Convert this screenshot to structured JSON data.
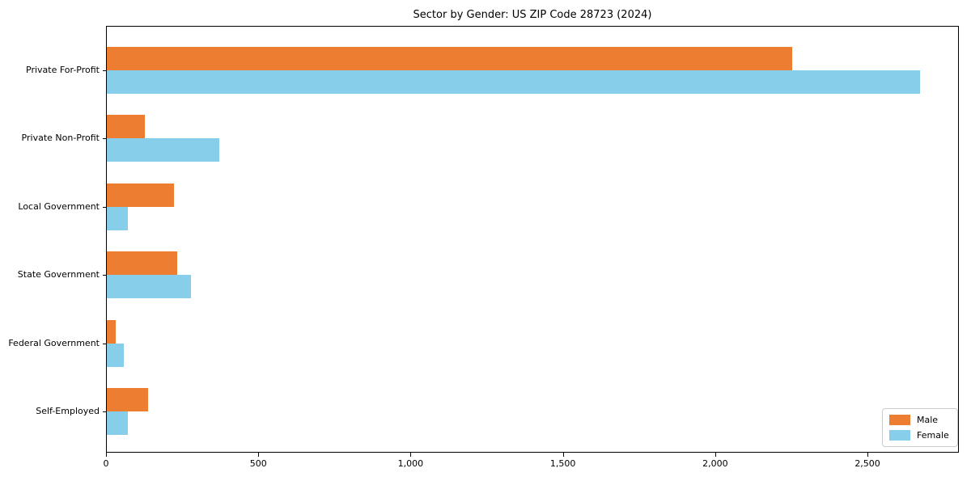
{
  "chart_data": {
    "type": "bar",
    "orientation": "horizontal",
    "title": "Sector by Gender: US ZIP Code 28723 (2024)",
    "categories": [
      "Private For-Profit",
      "Private Non-Profit",
      "Local Government",
      "State Government",
      "Federal Government",
      "Self-Employed"
    ],
    "series": [
      {
        "name": "Male",
        "color": "#ED7D31",
        "values": [
          2250,
          125,
          220,
          230,
          30,
          135
        ]
      },
      {
        "name": "Female",
        "color": "#87CEEB",
        "values": [
          2670,
          370,
          70,
          275,
          55,
          68
        ]
      }
    ],
    "xlabel": "",
    "ylabel": "",
    "xlim": [
      0,
      2800
    ],
    "xticks": [
      0,
      500,
      1000,
      1500,
      2000,
      2500
    ],
    "xtick_labels": [
      "0",
      "500",
      "1,000",
      "1,500",
      "2,000",
      "2,500"
    ],
    "legend_position": "lower right",
    "grid": false,
    "plot_border_color": "#000000",
    "background_color": "#ffffff"
  }
}
